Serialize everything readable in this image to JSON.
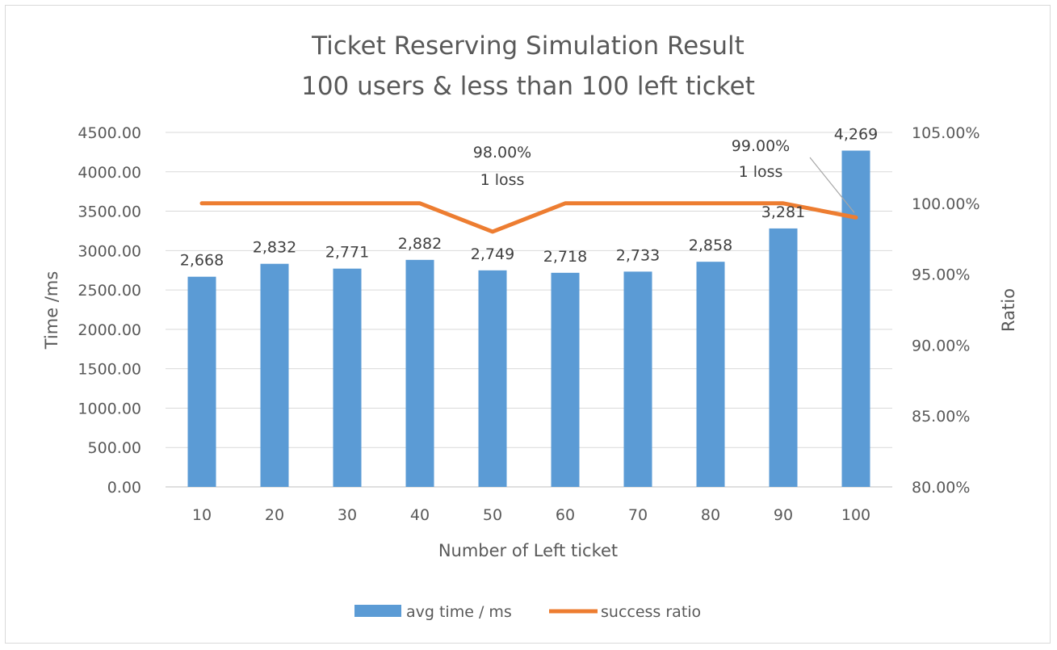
{
  "chart_data": {
    "type": "bar",
    "title": "Ticket Reserving Simulation Result",
    "subtitle": "100 users & less than 100 left ticket",
    "xlabel": "Number of Left ticket",
    "ylabel": "Time /ms",
    "y2label": "Ratio",
    "categories": [
      "10",
      "20",
      "30",
      "40",
      "50",
      "60",
      "70",
      "80",
      "90",
      "100"
    ],
    "ylim": [
      0,
      4500
    ],
    "yticks": [
      "0.00",
      "500.00",
      "1000.00",
      "1500.00",
      "2000.00",
      "2500.00",
      "3000.00",
      "3500.00",
      "4000.00",
      "4500.00"
    ],
    "y2lim": [
      0.8,
      1.05
    ],
    "y2ticks": [
      "80.00%",
      "85.00%",
      "90.00%",
      "95.00%",
      "100.00%",
      "105.00%"
    ],
    "grid": true,
    "legend_position": "bottom",
    "series": [
      {
        "name": "avg time / ms",
        "type": "bar",
        "axis": "left",
        "color": "#5b9bd5",
        "values": [
          2668,
          2832,
          2771,
          2882,
          2749,
          2718,
          2733,
          2858,
          3281,
          4269
        ],
        "labels": [
          "2,668",
          "2,832",
          "2,771",
          "2,882",
          "2,749",
          "2,718",
          "2,733",
          "2,858",
          "3,281",
          "4,269"
        ]
      },
      {
        "name": "success ratio",
        "type": "line",
        "axis": "right",
        "color": "#ed7d31",
        "values": [
          1.0,
          1.0,
          1.0,
          1.0,
          0.98,
          1.0,
          1.0,
          1.0,
          1.0,
          0.99
        ]
      }
    ],
    "annotations": [
      {
        "category": "50",
        "lines": [
          "98.00%",
          "1 loss"
        ]
      },
      {
        "category": "100",
        "lines": [
          "99.00%",
          "1 loss"
        ]
      }
    ]
  }
}
